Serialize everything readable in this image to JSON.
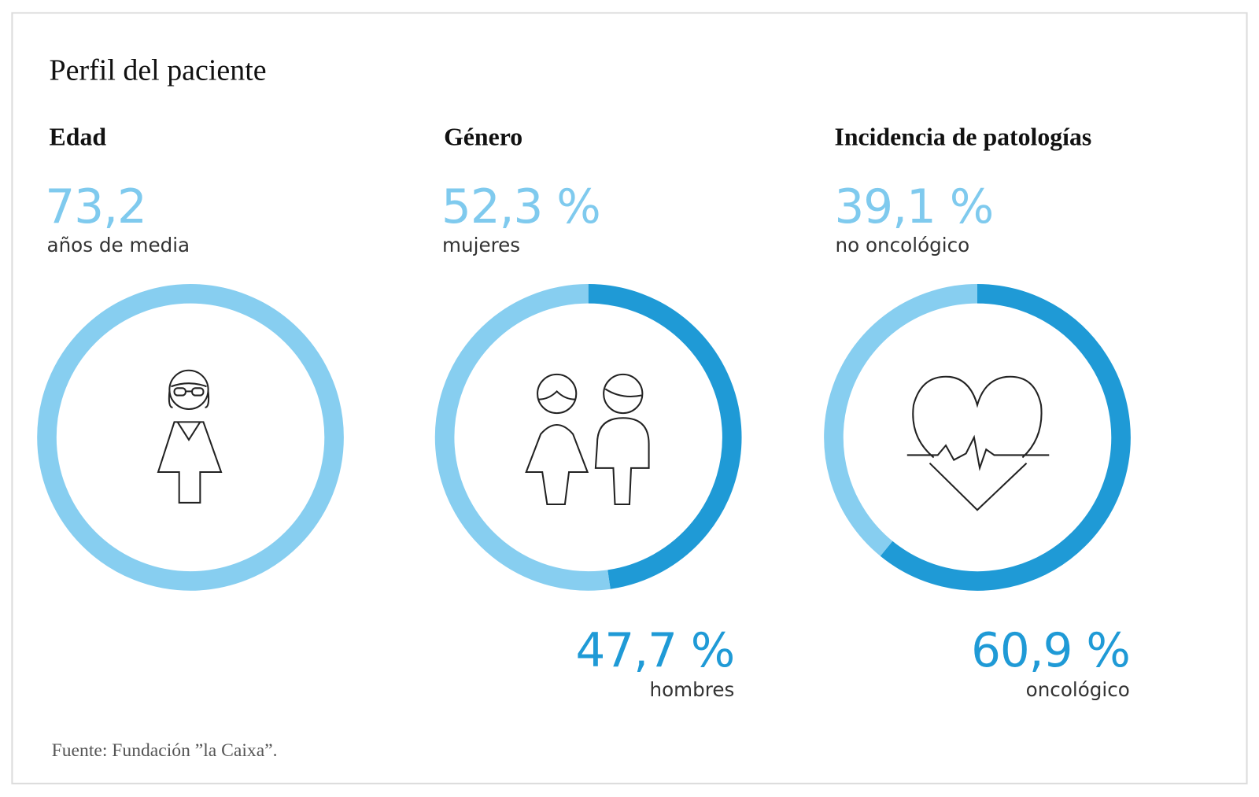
{
  "title": "Perfil del paciente",
  "colors": {
    "light": "#87cef0",
    "dark": "#1f9ad6"
  },
  "sections": [
    {
      "heading": "Edad",
      "value": "73,2",
      "label": "años de media",
      "icon": "elderly-woman-icon"
    },
    {
      "heading": "Género",
      "value": "52,3 %",
      "label": "mujeres",
      "second_value": "47,7 %",
      "second_label": "hombres",
      "icon": "woman-and-man-icon"
    },
    {
      "heading": "Incidencia de patologías",
      "value": "39,1 %",
      "label": "no oncológico",
      "second_value": "60,9 %",
      "second_label": "oncológico",
      "icon": "heart-pulse-icon"
    }
  ],
  "chart_data": [
    {
      "type": "pie",
      "title": "Edad",
      "values": [
        100
      ],
      "labels": [
        "años de media"
      ]
    },
    {
      "type": "pie",
      "title": "Género",
      "categories": [
        "mujeres",
        "hombres"
      ],
      "values": [
        52.3,
        47.7
      ]
    },
    {
      "type": "pie",
      "title": "Incidencia de patologías",
      "categories": [
        "no oncológico",
        "oncológico"
      ],
      "values": [
        39.1,
        60.9
      ]
    }
  ],
  "source": "Fuente: Fundación ”la Caixa”."
}
